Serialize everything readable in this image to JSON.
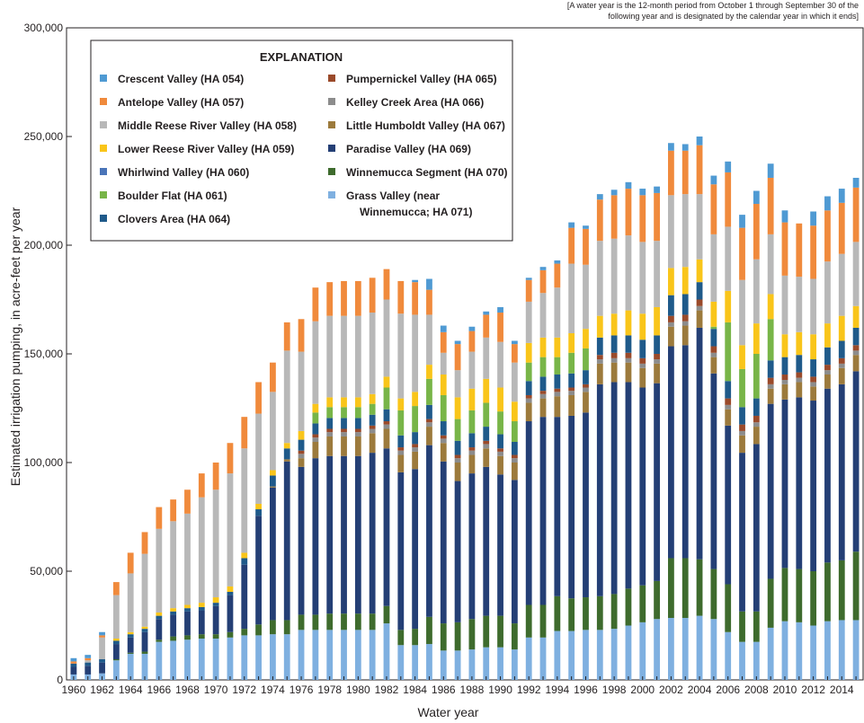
{
  "note": "[A water year is the 12-month period from October 1 through September 30 of the following year and is designated by the calendar year in which it ends]",
  "chart_data": {
    "type": "stacked-bar",
    "xlabel": "Water year",
    "ylabel": "Estimated irrigation pumping, in acre-feet per year",
    "ylim": [
      0,
      300000
    ],
    "yticks": [
      "0",
      "50,000",
      "100,000",
      "150,000",
      "200,000",
      "250,000",
      "300,000"
    ],
    "xtick_labels": [
      "1960",
      "1962",
      "1964",
      "1966",
      "1968",
      "1970",
      "1972",
      "1974",
      "1976",
      "1978",
      "1980",
      "1982",
      "1984",
      "1986",
      "1988",
      "1990",
      "1992",
      "1994",
      "1996",
      "1998",
      "2000",
      "2002",
      "2004",
      "2006",
      "2008",
      "2010",
      "2012",
      "2014"
    ],
    "legend_title": "EXPLANATION",
    "legend_placement": "top-left",
    "categories": [
      "1960",
      "1961",
      "1962",
      "1963",
      "1964",
      "1965",
      "1966",
      "1967",
      "1968",
      "1969",
      "1970",
      "1971",
      "1972",
      "1973",
      "1974",
      "1975",
      "1976",
      "1977",
      "1978",
      "1979",
      "1980",
      "1981",
      "1982",
      "1983",
      "1984",
      "1985",
      "1986",
      "1987",
      "1988",
      "1989",
      "1990",
      "1991",
      "1992",
      "1993",
      "1994",
      "1995",
      "1996",
      "1997",
      "1998",
      "1999",
      "2000",
      "2001",
      "2002",
      "2003",
      "2004",
      "2005",
      "2006",
      "2007",
      "2008",
      "2009",
      "2010",
      "2011",
      "2012",
      "2013",
      "2014",
      "2015"
    ],
    "series": [
      {
        "name": "Grass Valley (near Winnemucca; HA 071)",
        "color": "#7fb0e0",
        "values": [
          2500,
          2500,
          3000,
          9000,
          12000,
          12000,
          17500,
          18000,
          18500,
          19000,
          19000,
          19500,
          20500,
          20500,
          21000,
          21000,
          23000,
          23000,
          23000,
          23000,
          23000,
          23000,
          26000,
          16000,
          16000,
          16500,
          13500,
          13500,
          14000,
          15000,
          15000,
          14000,
          19500,
          19500,
          22500,
          22500,
          23000,
          23000,
          23500,
          25000,
          26500,
          28000,
          28500,
          28500,
          29500,
          28000,
          22000,
          17500,
          17500,
          24000,
          27000,
          26500,
          25000,
          27000,
          27500,
          27500
        ]
      },
      {
        "name": "Winnemucca Segment (HA 070)",
        "color": "#3e6b2d",
        "values": [
          0,
          0,
          0,
          500,
          500,
          1000,
          1000,
          2000,
          2000,
          2000,
          2000,
          2500,
          3000,
          5000,
          6500,
          6500,
          7000,
          7000,
          7500,
          7500,
          7500,
          7500,
          8000,
          7000,
          7500,
          12500,
          12500,
          13000,
          14000,
          14500,
          14500,
          12000,
          15000,
          15000,
          16000,
          15000,
          15000,
          15500,
          16000,
          17000,
          17000,
          17500,
          27500,
          27500,
          26000,
          23000,
          22000,
          14000,
          14000,
          22500,
          24500,
          24500,
          25000,
          27000,
          27500,
          31500
        ]
      },
      {
        "name": "Paradise Valley (HA 069)",
        "color": "#243f75",
        "values": [
          3500,
          4000,
          5000,
          7000,
          7000,
          9000,
          9500,
          10000,
          11000,
          11000,
          13000,
          17000,
          29500,
          50000,
          61000,
          73000,
          68000,
          72000,
          72500,
          72500,
          72500,
          74000,
          72500,
          72500,
          73500,
          79000,
          74500,
          65000,
          67000,
          68500,
          65000,
          66000,
          84500,
          86500,
          82500,
          84000,
          85000,
          97500,
          97500,
          95000,
          91000,
          91000,
          97500,
          98000,
          106500,
          90000,
          73000,
          73000,
          77000,
          80500,
          77500,
          79000,
          78500,
          80000,
          81000,
          83000
        ]
      },
      {
        "name": "Little Humboldt Valley (HA 067)",
        "color": "#9c7a3c",
        "values": [
          0,
          0,
          0,
          0,
          0,
          0,
          0,
          0,
          0,
          0,
          0,
          0,
          0,
          0,
          500,
          1000,
          4000,
          7500,
          9000,
          9000,
          9000,
          9000,
          9000,
          8000,
          8000,
          8500,
          8500,
          8500,
          8500,
          8500,
          8500,
          8000,
          8500,
          8500,
          9500,
          9500,
          9500,
          9500,
          9000,
          9000,
          9000,
          9000,
          9000,
          9000,
          8000,
          7500,
          7500,
          8000,
          8000,
          7000,
          7000,
          7000,
          6500,
          6500,
          7500,
          7500
        ]
      },
      {
        "name": "Kelley Creek Area (HA 066)",
        "color": "#8c8c8c",
        "values": [
          0,
          0,
          0,
          0,
          0,
          0,
          0,
          0,
          0,
          0,
          0,
          0,
          0,
          0,
          0,
          0,
          2000,
          2000,
          2000,
          2000,
          2000,
          2000,
          2000,
          2000,
          2000,
          2000,
          2000,
          2000,
          2000,
          2000,
          2000,
          2000,
          2000,
          2000,
          2000,
          2000,
          2000,
          2000,
          2000,
          2000,
          2000,
          2000,
          2000,
          2000,
          2000,
          2000,
          2000,
          2000,
          2000,
          2000,
          2000,
          2000,
          2000,
          2000,
          2000,
          2000
        ]
      },
      {
        "name": "Pumpernickel Valley (HA 065)",
        "color": "#9a4a2a",
        "values": [
          0,
          0,
          0,
          0,
          0,
          0,
          0,
          0,
          0,
          0,
          0,
          0,
          0,
          0,
          0,
          0,
          1500,
          1500,
          1500,
          1500,
          1500,
          1500,
          1500,
          1500,
          1500,
          1500,
          1500,
          1500,
          1500,
          1500,
          1500,
          1500,
          1500,
          1500,
          1500,
          1500,
          1500,
          2000,
          2500,
          2500,
          2500,
          2500,
          3000,
          3000,
          3000,
          3000,
          3000,
          3000,
          3000,
          3000,
          2500,
          2500,
          2500,
          2500,
          2500,
          2500
        ]
      },
      {
        "name": "Clovers Area (HA 064)",
        "color": "#1f5a8a",
        "values": [
          1500,
          1500,
          1500,
          1500,
          1500,
          1500,
          1500,
          1500,
          1500,
          1500,
          1500,
          1500,
          3000,
          3000,
          5000,
          5000,
          5000,
          5000,
          5000,
          5000,
          5000,
          5000,
          5500,
          5500,
          5500,
          6500,
          6500,
          6500,
          6500,
          6500,
          6500,
          6000,
          6500,
          6500,
          6500,
          6500,
          6500,
          8000,
          8000,
          8000,
          8500,
          8500,
          9500,
          9500,
          8000,
          8000,
          8000,
          8000,
          8000,
          8000,
          8000,
          8000,
          8000,
          8000,
          8000,
          8000
        ]
      },
      {
        "name": "Boulder Flat (HA 061)",
        "color": "#78b548",
        "values": [
          0,
          0,
          0,
          0,
          0,
          0,
          0,
          0,
          0,
          0,
          0,
          0,
          0,
          0,
          0,
          0,
          0,
          5000,
          5000,
          5000,
          5000,
          5000,
          10000,
          11500,
          12000,
          12000,
          12000,
          10000,
          10500,
          11000,
          10500,
          9500,
          8500,
          9000,
          8000,
          9500,
          10000,
          0,
          0,
          0,
          0,
          0,
          0,
          0,
          0,
          1000,
          27000,
          17500,
          20500,
          19000,
          0,
          0,
          0,
          0,
          0,
          0
        ]
      },
      {
        "name": "Whirlwind Valley (HA 060)",
        "color": "#4a74b8",
        "values": [
          0,
          0,
          0,
          0,
          0,
          0,
          0,
          0,
          0,
          0,
          0,
          0,
          0,
          0,
          0,
          0,
          0,
          0,
          0,
          0,
          0,
          0,
          0,
          0,
          0,
          0,
          0,
          0,
          0,
          0,
          0,
          0,
          0,
          0,
          0,
          0,
          0,
          0,
          0,
          0,
          0,
          0,
          0,
          0,
          0,
          0,
          0,
          0,
          0,
          0,
          0,
          0,
          0,
          0,
          0,
          0
        ]
      },
      {
        "name": "Lower Reese River Valley (HA 059)",
        "color": "#f9c51a",
        "values": [
          0,
          0,
          0,
          1000,
          1000,
          1000,
          1500,
          1500,
          1500,
          2000,
          2500,
          2500,
          2500,
          2500,
          2500,
          2500,
          4000,
          4000,
          4500,
          4500,
          4500,
          4500,
          5000,
          5500,
          6500,
          6500,
          9500,
          10000,
          10000,
          11000,
          11000,
          9000,
          9000,
          9000,
          9000,
          9000,
          9000,
          10000,
          10000,
          11500,
          12000,
          13000,
          12500,
          12500,
          10500,
          11500,
          14500,
          11000,
          14000,
          11500,
          10500,
          10500,
          11500,
          11000,
          11500,
          10000
        ]
      },
      {
        "name": "Middle Reese River Valley (HA 058)",
        "color": "#b8b8b8",
        "values": [
          0,
          1000,
          10000,
          20000,
          27000,
          33500,
          38500,
          40000,
          42000,
          48500,
          49500,
          52000,
          48000,
          41500,
          36000,
          42500,
          36500,
          38000,
          37500,
          37500,
          37500,
          37500,
          35500,
          39000,
          35500,
          23000,
          10000,
          12500,
          17000,
          19000,
          21000,
          18000,
          19000,
          20500,
          23000,
          32000,
          29500,
          34500,
          34500,
          34500,
          33000,
          30500,
          33500,
          33500,
          30000,
          31000,
          29500,
          30000,
          29500,
          27500,
          27000,
          25500,
          25500,
          28500,
          28500,
          29500
        ]
      },
      {
        "name": "Antelope Valley (HA 057)",
        "color": "#f08a3c",
        "values": [
          1000,
          1000,
          1000,
          6000,
          9500,
          10000,
          10000,
          10000,
          11000,
          11000,
          12500,
          14000,
          14500,
          14500,
          13500,
          13000,
          15000,
          15500,
          15500,
          16000,
          16000,
          16000,
          14000,
          15000,
          15000,
          11500,
          9500,
          12000,
          9500,
          10500,
          13500,
          8500,
          10000,
          10500,
          11000,
          16500,
          16500,
          19000,
          20000,
          21500,
          21500,
          22000,
          20500,
          20000,
          22500,
          23000,
          25000,
          24000,
          25500,
          26000,
          24500,
          24500,
          24500,
          23500,
          23500,
          25000
        ]
      },
      {
        "name": "Crescent Valley (HA 054)",
        "color": "#4f9ad3",
        "values": [
          1500,
          1500,
          1500,
          0,
          0,
          0,
          0,
          0,
          0,
          0,
          0,
          0,
          0,
          0,
          0,
          0,
          0,
          0,
          0,
          0,
          0,
          0,
          0,
          0,
          1000,
          5000,
          3000,
          1500,
          2000,
          1500,
          2500,
          1500,
          1000,
          1500,
          1500,
          2500,
          1500,
          2500,
          2500,
          3000,
          3000,
          3000,
          3500,
          3000,
          4000,
          4000,
          5000,
          6000,
          6000,
          6500,
          5500,
          0,
          6500,
          6500,
          6500,
          4500
        ]
      }
    ],
    "legend_columns": [
      [
        {
          "name": "Crescent Valley (HA 054)",
          "color": "#4f9ad3"
        },
        {
          "name": "Antelope Valley (HA 057)",
          "color": "#f08a3c"
        },
        {
          "name": "Middle Reese River Valley (HA 058)",
          "color": "#b8b8b8"
        },
        {
          "name": "Lower Reese River Valley (HA 059)",
          "color": "#f9c51a"
        },
        {
          "name": "Whirlwind Valley (HA 060)",
          "color": "#4a74b8"
        },
        {
          "name": "Boulder Flat (HA 061)",
          "color": "#78b548"
        },
        {
          "name": "Clovers Area (HA 064)",
          "color": "#1f5a8a"
        }
      ],
      [
        {
          "name": "Pumpernickel Valley (HA 065)",
          "color": "#9a4a2a"
        },
        {
          "name": "Kelley Creek Area (HA 066)",
          "color": "#8c8c8c"
        },
        {
          "name": "Little Humboldt Valley (HA 067)",
          "color": "#9c7a3c"
        },
        {
          "name": "Paradise Valley (HA 069)",
          "color": "#243f75"
        },
        {
          "name": "Winnemucca Segment (HA 070)",
          "color": "#3e6b2d"
        },
        {
          "name": "Grass Valley (near",
          "line2": "Winnemucca; HA 071)",
          "color": "#7fb0e0"
        }
      ]
    ]
  }
}
